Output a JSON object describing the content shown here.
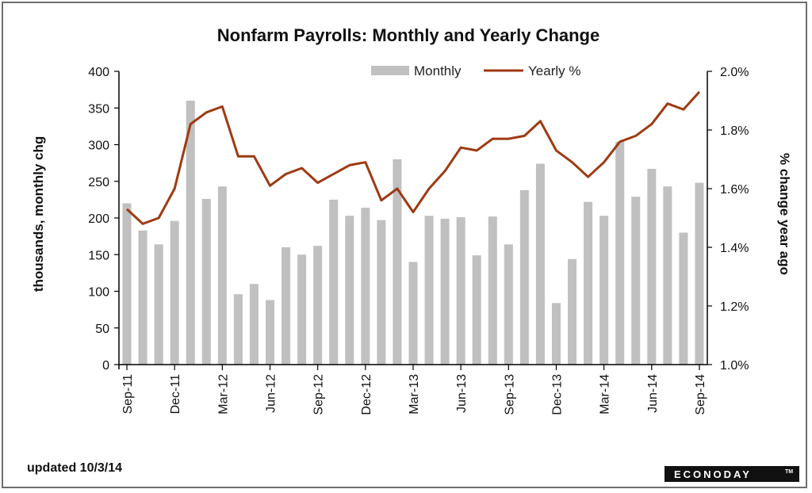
{
  "chart_data": {
    "type": "bar",
    "title": "Nonfarm Payrolls: Monthly and Yearly Change",
    "ylabel": "thousands, monthly chg",
    "y2label": "% change year ago",
    "ylim": [
      0,
      400
    ],
    "y2lim": [
      1.0,
      2.0
    ],
    "yticks": [
      "0",
      "50",
      "100",
      "150",
      "200",
      "250",
      "300",
      "350",
      "400"
    ],
    "y2ticks": [
      "1.0%",
      "1.2%",
      "1.4%",
      "1.6%",
      "1.8%",
      "2.0%"
    ],
    "categories": [
      "Sep-11",
      "Oct-11",
      "Nov-11",
      "Dec-11",
      "Jan-12",
      "Feb-12",
      "Mar-12",
      "Apr-12",
      "May-12",
      "Jun-12",
      "Jul-12",
      "Aug-12",
      "Sep-12",
      "Oct-12",
      "Nov-12",
      "Dec-12",
      "Jan-13",
      "Feb-13",
      "Mar-13",
      "Apr-13",
      "May-13",
      "Jun-13",
      "Jul-13",
      "Aug-13",
      "Sep-13",
      "Oct-13",
      "Nov-13",
      "Dec-13",
      "Jan-14",
      "Feb-14",
      "Mar-14",
      "Apr-14",
      "May-14",
      "Jun-14",
      "Jul-14",
      "Aug-14",
      "Sep-14"
    ],
    "tick_labels": [
      "Sep-11",
      "Dec-11",
      "Mar-12",
      "Jun-12",
      "Sep-12",
      "Dec-12",
      "Mar-13",
      "Jun-13",
      "Sep-13",
      "Dec-13",
      "Mar-14",
      "Jun-14",
      "Sep-14"
    ],
    "series": [
      {
        "name": "Monthly",
        "type": "bar",
        "axis": "left",
        "color": "#c0c0c0",
        "values": [
          220,
          183,
          164,
          196,
          360,
          226,
          243,
          96,
          110,
          88,
          160,
          150,
          162,
          225,
          203,
          214,
          197,
          280,
          140,
          203,
          199,
          201,
          149,
          202,
          164,
          238,
          274,
          84,
          144,
          222,
          203,
          304,
          229,
          267,
          243,
          180,
          248
        ]
      },
      {
        "name": "Yearly %",
        "type": "line",
        "axis": "right",
        "color": "#9e3a12",
        "values": [
          1.53,
          1.48,
          1.5,
          1.6,
          1.82,
          1.86,
          1.88,
          1.71,
          1.71,
          1.61,
          1.65,
          1.67,
          1.62,
          1.65,
          1.68,
          1.69,
          1.56,
          1.6,
          1.52,
          1.6,
          1.66,
          1.74,
          1.73,
          1.77,
          1.77,
          1.78,
          1.83,
          1.73,
          1.69,
          1.64,
          1.69,
          1.76,
          1.78,
          1.82,
          1.89,
          1.87,
          1.93
        ]
      }
    ],
    "legend": "top",
    "grid": false
  },
  "footer": {
    "updated": "updated 10/3/14",
    "logo": "ECONODAY",
    "logo_tm": "TM"
  }
}
